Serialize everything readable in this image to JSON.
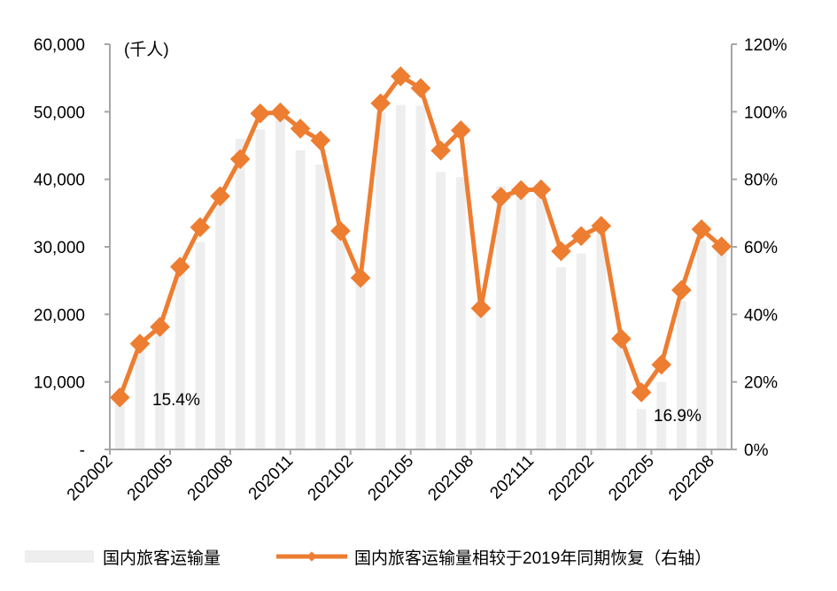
{
  "chart_data": {
    "type": "bar+line",
    "unit_label": "(千人)",
    "x": [
      "202002",
      "202003",
      "202004",
      "202005",
      "202006",
      "202007",
      "202008",
      "202009",
      "202010",
      "202011",
      "202012",
      "202101",
      "202102",
      "202103",
      "202104",
      "202105",
      "202106",
      "202107",
      "202108",
      "202109",
      "202110",
      "202111",
      "202112",
      "202201",
      "202202",
      "202203",
      "202204",
      "202205",
      "202206",
      "202207",
      "202208"
    ],
    "x_tick_labels": [
      "202002",
      "202005",
      "202008",
      "202011",
      "202102",
      "202105",
      "202108",
      "202111",
      "202202",
      "202205",
      "202208"
    ],
    "series": [
      {
        "name": "国内旅客运输量",
        "axis": "left",
        "type": "bar",
        "color": "#eeeeee",
        "values": [
          8400,
          15700,
          18200,
          26800,
          30700,
          37200,
          46000,
          47400,
          50000,
          44300,
          42200,
          32400,
          25300,
          50000,
          51000,
          50900,
          41100,
          40300,
          21000,
          39000,
          39000,
          38700,
          27000,
          29000,
          33000,
          16000,
          6000,
          10000,
          22000,
          31000,
          30000
        ]
      },
      {
        "name": "国内旅客运输量相较于2019年同期恢复（右轴）",
        "axis": "right",
        "type": "line",
        "color": "#ed7d31",
        "values": [
          0.154,
          0.313,
          0.363,
          0.541,
          0.658,
          0.75,
          0.86,
          0.995,
          0.998,
          0.95,
          0.915,
          0.647,
          0.508,
          1.025,
          1.105,
          1.07,
          0.885,
          0.945,
          0.418,
          0.748,
          0.768,
          0.77,
          0.587,
          0.632,
          0.662,
          0.328,
          0.169,
          0.251,
          0.472,
          0.652,
          0.601
        ]
      }
    ],
    "y_left": {
      "min": 0,
      "max": 60000,
      "tick_labels": [
        "-",
        "10,000",
        "20,000",
        "30,000",
        "40,000",
        "50,000",
        "60,000"
      ]
    },
    "y_right": {
      "min": 0,
      "max": 1.2,
      "tick_labels": [
        "0%",
        "20%",
        "40%",
        "60%",
        "80%",
        "100%",
        "120%"
      ]
    },
    "annotations": [
      "15.4%",
      "16.9%"
    ],
    "legend_position": "bottom"
  }
}
